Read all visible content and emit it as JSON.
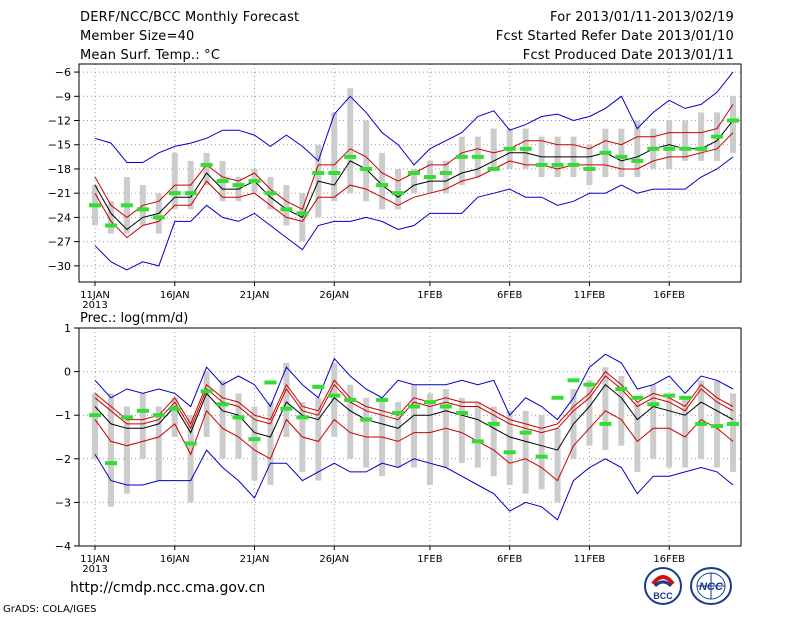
{
  "header": {
    "title": "DERF/NCC/BCC Monthly Forecast",
    "member_size": "Member Size=40",
    "variable": "Mean Surf. Temp.: °C",
    "period": "For 2013/01/11-2013/02/19",
    "started": "Fcst Started Refer Date 2013/01/10",
    "produced": "Fcst Produced Date 2013/01/11"
  },
  "footer": {
    "url": "http://cmdp.ncc.cma.gov.cn",
    "grads": "GrADS: COLA/IGES",
    "logo_left_text": "BCC",
    "logo_right_text": "NCC"
  },
  "colors": {
    "mean": "#000000",
    "spread": "#cc0000",
    "extreme": "#0000cc",
    "box": "#cccccc",
    "obs": "#33dd33",
    "grid": "#999999"
  },
  "chart_data": [
    {
      "type": "line",
      "title": "Mean Surf. Temp.: °C",
      "ylabel": "°C",
      "ylim": [
        -32,
        -5
      ],
      "yticks": [
        -30,
        -27,
        -24,
        -21,
        -18,
        -15,
        -12,
        -9,
        -6
      ],
      "xticks": [
        {
          "day": 0,
          "label": "11JAN"
        },
        {
          "day": 5,
          "label": "16JAN"
        },
        {
          "day": 10,
          "label": "21JAN"
        },
        {
          "day": 15,
          "label": "26JAN"
        },
        {
          "day": 21,
          "label": "1FEB"
        },
        {
          "day": 26,
          "label": "6FEB"
        },
        {
          "day": 31,
          "label": "11FEB"
        },
        {
          "day": 36,
          "label": "16FEB"
        }
      ],
      "year_label": "2013",
      "series": [
        {
          "name": "max",
          "values": [
            -14.2,
            -14.8,
            -17.2,
            -17.2,
            -16.0,
            -15.2,
            -14.8,
            -14.2,
            -13.2,
            -13.2,
            -13.8,
            -15.2,
            -13.8,
            -15.2,
            -17.0,
            -11.2,
            -9.0,
            -11.0,
            -13.5,
            -15.0,
            -17.5,
            -15.5,
            -14.5,
            -13.5,
            -11.5,
            -10.8,
            -13.2,
            -12.5,
            -11.5,
            -11.2,
            -12.0,
            -11.5,
            -10.5,
            -9.0,
            -13.0,
            -11.0,
            -9.5,
            -10.5,
            -10.0,
            -8.5,
            -6.0
          ]
        },
        {
          "name": "p75",
          "values": [
            -19.0,
            -22.5,
            -24.0,
            -22.5,
            -22.0,
            -20.0,
            -20.0,
            -17.5,
            -19.0,
            -19.5,
            -18.5,
            -20.5,
            -22.0,
            -23.0,
            -17.5,
            -17.5,
            -15.5,
            -16.5,
            -18.5,
            -19.5,
            -18.5,
            -17.5,
            -17.5,
            -16.0,
            -15.5,
            -16.0,
            -15.5,
            -14.5,
            -14.5,
            -15.0,
            -15.0,
            -15.5,
            -14.5,
            -15.0,
            -14.0,
            -14.0,
            -13.5,
            -13.5,
            -13.5,
            -13.0,
            -10.0
          ]
        },
        {
          "name": "mean",
          "values": [
            -20.0,
            -23.5,
            -25.5,
            -24.0,
            -23.5,
            -21.5,
            -21.5,
            -18.5,
            -20.5,
            -20.5,
            -19.5,
            -21.5,
            -23.0,
            -24.0,
            -19.5,
            -20.0,
            -17.0,
            -18.0,
            -20.0,
            -21.5,
            -20.0,
            -19.5,
            -19.5,
            -18.5,
            -18.0,
            -17.0,
            -16.0,
            -16.0,
            -16.5,
            -16.5,
            -16.5,
            -16.5,
            -16.0,
            -17.0,
            -16.5,
            -15.5,
            -15.0,
            -15.5,
            -15.5,
            -14.5,
            -12.0
          ]
        },
        {
          "name": "p25",
          "values": [
            -21.0,
            -24.5,
            -26.5,
            -25.0,
            -24.5,
            -22.5,
            -22.5,
            -19.5,
            -21.5,
            -21.5,
            -21.0,
            -22.5,
            -24.0,
            -24.5,
            -21.5,
            -21.5,
            -20.0,
            -20.5,
            -21.5,
            -22.5,
            -21.5,
            -21.0,
            -20.5,
            -19.5,
            -19.0,
            -18.0,
            -17.0,
            -17.5,
            -17.5,
            -18.0,
            -17.5,
            -17.5,
            -17.5,
            -18.0,
            -18.0,
            -17.0,
            -16.5,
            -16.5,
            -16.0,
            -15.5,
            -13.5
          ]
        },
        {
          "name": "min",
          "values": [
            -27.5,
            -29.5,
            -30.5,
            -29.5,
            -30.0,
            -24.5,
            -24.5,
            -22.5,
            -24.0,
            -24.5,
            -23.5,
            -25.0,
            -26.5,
            -28.0,
            -25.0,
            -24.5,
            -24.5,
            -24.0,
            -24.5,
            -25.5,
            -25.0,
            -23.5,
            -23.5,
            -23.5,
            -21.5,
            -21.0,
            -20.5,
            -21.5,
            -21.5,
            -22.5,
            -22.0,
            -21.0,
            -21.0,
            -20.0,
            -21.0,
            -20.5,
            -20.5,
            -20.5,
            -19.0,
            -18.0,
            -16.5
          ]
        }
      ],
      "boxes": [
        [
          -25,
          -20
        ],
        [
          -26,
          -22
        ],
        [
          -26,
          -19
        ],
        [
          -25,
          -20
        ],
        [
          -26,
          -21
        ],
        [
          -23,
          -16
        ],
        [
          -23,
          -17
        ],
        [
          -20,
          -16
        ],
        [
          -22,
          -17
        ],
        [
          -22,
          -19
        ],
        [
          -21,
          -18
        ],
        [
          -23,
          -19
        ],
        [
          -25,
          -20
        ],
        [
          -27,
          -21
        ],
        [
          -24,
          -15
        ],
        [
          -22,
          -11
        ],
        [
          -21,
          -8
        ],
        [
          -22,
          -12
        ],
        [
          -23,
          -16
        ],
        [
          -23,
          -18
        ],
        [
          -21,
          -18
        ],
        [
          -21,
          -17
        ],
        [
          -21,
          -17
        ],
        [
          -20,
          -14
        ],
        [
          -19,
          -14
        ],
        [
          -18,
          -13
        ],
        [
          -18,
          -13
        ],
        [
          -18,
          -13
        ],
        [
          -19,
          -14
        ],
        [
          -19,
          -14
        ],
        [
          -19,
          -14
        ],
        [
          -20,
          -15
        ],
        [
          -19,
          -13
        ],
        [
          -19,
          -13
        ],
        [
          -19,
          -12
        ],
        [
          -18,
          -13
        ],
        [
          -18,
          -12
        ],
        [
          -17,
          -12
        ],
        [
          -17,
          -11
        ],
        [
          -17,
          -11
        ],
        [
          -16,
          -9
        ]
      ],
      "observed": [
        -22.5,
        -25.0,
        -22.5,
        -23.0,
        -24.0,
        -21.0,
        -21.0,
        -17.5,
        -19.5,
        -20.0,
        -19.5,
        -21.0,
        -23.0,
        -23.5,
        -18.5,
        -18.5,
        -16.5,
        -18.0,
        -20.0,
        -21.0,
        -18.5,
        -19.0,
        -18.5,
        -16.5,
        -16.5,
        -18.0,
        -15.5,
        -15.5,
        -17.5,
        -17.5,
        -17.5,
        -18.0,
        -16.0,
        -16.5,
        -17.0,
        -15.5,
        -15.5,
        -15.5,
        -15.5,
        -14.0,
        -12.0
      ]
    },
    {
      "type": "line",
      "title": "Prec.: log(mm/d)",
      "ylabel": "log(mm/d)",
      "ylim": [
        -4,
        1
      ],
      "yticks": [
        -4,
        -3,
        -2,
        -1,
        0,
        1
      ],
      "xticks": [
        {
          "day": 0,
          "label": "11JAN"
        },
        {
          "day": 5,
          "label": "16JAN"
        },
        {
          "day": 10,
          "label": "21JAN"
        },
        {
          "day": 15,
          "label": "26JAN"
        },
        {
          "day": 21,
          "label": "1FEB"
        },
        {
          "day": 26,
          "label": "6FEB"
        },
        {
          "day": 31,
          "label": "11FEB"
        },
        {
          "day": 36,
          "label": "16FEB"
        }
      ],
      "year_label": "2013",
      "series": [
        {
          "name": "max",
          "values": [
            -0.2,
            -0.6,
            -0.4,
            -0.5,
            -0.4,
            -0.5,
            -0.8,
            0.1,
            -0.3,
            -0.1,
            -0.3,
            -0.8,
            0.1,
            -0.3,
            -0.6,
            0.3,
            -0.1,
            -0.4,
            -0.6,
            -0.2,
            -0.3,
            -0.3,
            -0.3,
            -0.2,
            -0.3,
            -0.2,
            -1.0,
            -0.6,
            -0.8,
            -1.1,
            -0.6,
            0.1,
            0.4,
            0.2,
            -0.4,
            -0.3,
            -0.1,
            -0.5,
            -0.1,
            -0.2,
            -0.4
          ]
        },
        {
          "name": "p75",
          "values": [
            -0.6,
            -0.9,
            -1.2,
            -1.2,
            -1.1,
            -0.7,
            -1.3,
            -0.4,
            -0.7,
            -0.8,
            -1.1,
            -1.2,
            -0.4,
            -0.9,
            -1.0,
            -0.3,
            -0.7,
            -0.9,
            -1.0,
            -1.1,
            -0.7,
            -0.8,
            -0.7,
            -0.8,
            -0.8,
            -1.0,
            -1.2,
            -1.3,
            -1.4,
            -1.3,
            -0.9,
            -0.6,
            -0.1,
            -0.4,
            -0.8,
            -0.6,
            -0.7,
            -0.9,
            -0.4,
            -0.7,
            -0.9
          ]
        },
        {
          "name": "mean",
          "values": [
            -0.8,
            -1.2,
            -1.3,
            -1.3,
            -1.2,
            -0.8,
            -1.4,
            -0.5,
            -0.9,
            -1.0,
            -1.4,
            -1.5,
            -0.7,
            -1.0,
            -1.1,
            -0.6,
            -0.9,
            -1.1,
            -1.2,
            -1.3,
            -1.0,
            -1.0,
            -0.9,
            -1.0,
            -1.1,
            -1.3,
            -1.5,
            -1.6,
            -1.7,
            -1.8,
            -1.2,
            -0.8,
            -0.3,
            -0.6,
            -1.1,
            -0.8,
            -0.9,
            -1.0,
            -0.7,
            -0.9,
            -1.1
          ]
        },
        {
          "name": "p25",
          "values": [
            -1.1,
            -1.6,
            -1.7,
            -1.6,
            -1.5,
            -1.2,
            -1.9,
            -0.9,
            -1.3,
            -1.5,
            -1.8,
            -2.0,
            -1.1,
            -1.5,
            -1.6,
            -1.1,
            -1.4,
            -1.5,
            -1.5,
            -1.6,
            -1.4,
            -1.4,
            -1.3,
            -1.4,
            -1.6,
            -1.8,
            -2.1,
            -2.0,
            -2.2,
            -2.5,
            -1.7,
            -1.3,
            -0.9,
            -1.1,
            -1.6,
            -1.3,
            -1.3,
            -1.5,
            -1.1,
            -1.3,
            -1.6
          ]
        },
        {
          "name": "min",
          "values": [
            -1.9,
            -2.5,
            -2.6,
            -2.6,
            -2.5,
            -2.5,
            -2.5,
            -1.8,
            -2.2,
            -2.5,
            -2.9,
            -2.1,
            -2.1,
            -2.5,
            -2.3,
            -2.1,
            -2.3,
            -2.3,
            -2.1,
            -2.2,
            -2.0,
            -2.1,
            -2.2,
            -2.4,
            -2.6,
            -2.8,
            -3.2,
            -3.0,
            -3.1,
            -3.4,
            -2.5,
            -2.2,
            -2.0,
            -2.2,
            -2.8,
            -2.4,
            -2.4,
            -2.3,
            -2.2,
            -2.3,
            -2.6
          ]
        },
        {
          "name": "p10",
          "values": [
            -0.5,
            -0.8,
            -1.1,
            -1.1,
            -1.0,
            -0.6,
            -1.2,
            -0.3,
            -0.6,
            -0.7,
            -1.0,
            -1.1,
            -0.3,
            -0.8,
            -0.9,
            -0.2,
            -0.6,
            -0.8,
            -0.9,
            -1.0,
            -0.6,
            -0.7,
            -0.6,
            -0.7,
            -0.7,
            -0.9,
            -1.1,
            -1.2,
            -1.3,
            -1.2,
            -0.8,
            -0.5,
            0.0,
            -0.3,
            -0.7,
            -0.5,
            -0.6,
            -0.8,
            -0.3,
            -0.6,
            -0.8
          ]
        }
      ],
      "boxes": [
        [
          -2.0,
          -0.5
        ],
        [
          -3.1,
          -0.5
        ],
        [
          -2.8,
          -0.8
        ],
        [
          -2.0,
          -0.5
        ],
        [
          -2.5,
          -0.8
        ],
        [
          -1.5,
          -0.6
        ],
        [
          -3.0,
          -1.0
        ],
        [
          -1.5,
          0.0
        ],
        [
          -2.0,
          -0.2
        ],
        [
          -2.0,
          -0.5
        ],
        [
          -2.5,
          -0.8
        ],
        [
          -2.6,
          -0.7
        ],
        [
          -1.5,
          0.2
        ],
        [
          -2.3,
          -0.7
        ],
        [
          -2.5,
          -0.6
        ],
        [
          -1.5,
          0.2
        ],
        [
          -2.0,
          -0.3
        ],
        [
          -2.2,
          -0.6
        ],
        [
          -2.4,
          -0.6
        ],
        [
          -2.2,
          -0.7
        ],
        [
          -2.2,
          -0.3
        ],
        [
          -2.6,
          -0.5
        ],
        [
          -2.2,
          -0.4
        ],
        [
          -2.1,
          -0.6
        ],
        [
          -2.2,
          -0.7
        ],
        [
          -2.4,
          -0.8
        ],
        [
          -2.6,
          -0.9
        ],
        [
          -2.8,
          -0.9
        ],
        [
          -2.7,
          -1.0
        ],
        [
          -3.0,
          -1.3
        ],
        [
          -2.0,
          -0.4
        ],
        [
          -1.7,
          -0.2
        ],
        [
          -1.8,
          0.1
        ],
        [
          -1.7,
          -0.1
        ],
        [
          -2.3,
          -0.7
        ],
        [
          -2.0,
          -0.3
        ],
        [
          -2.2,
          -0.6
        ],
        [
          -2.2,
          -0.6
        ],
        [
          -2.0,
          -0.2
        ],
        [
          -2.2,
          -0.2
        ],
        [
          -2.3,
          -0.5
        ]
      ],
      "observed": [
        -1.0,
        -2.1,
        -1.05,
        -0.9,
        -1.0,
        -0.85,
        -1.65,
        -0.45,
        -0.75,
        -1.05,
        -1.55,
        -0.25,
        -0.85,
        -1.05,
        -0.35,
        -0.55,
        -0.65,
        -1.1,
        -0.65,
        -0.95,
        -0.8,
        -0.7,
        -0.8,
        -0.95,
        -1.6,
        -1.2,
        -1.85,
        -1.4,
        -1.95,
        -0.6,
        -0.2,
        -0.3,
        -1.2,
        -0.4,
        -0.6,
        -0.75,
        -0.55,
        -0.6,
        -1.2,
        -1.25,
        -1.2
      ]
    }
  ]
}
